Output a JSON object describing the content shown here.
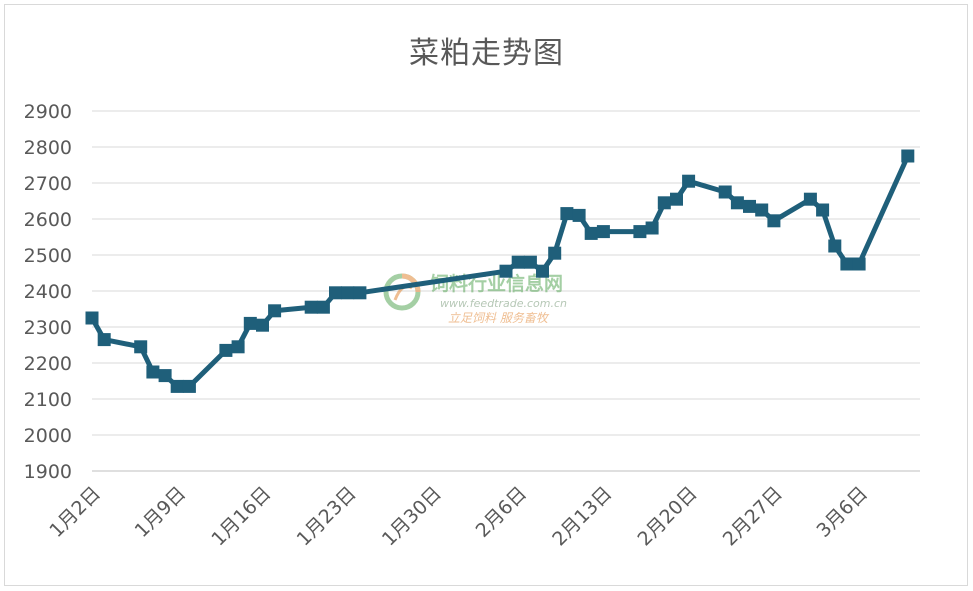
{
  "chart_data": {
    "type": "line",
    "title": "菜粕走势图",
    "xlabel": "",
    "ylabel": "",
    "ylim": [
      1900,
      2900
    ],
    "yticks": [
      1900,
      2000,
      2100,
      2200,
      2300,
      2400,
      2500,
      2600,
      2700,
      2800,
      2900
    ],
    "xticks": [
      {
        "label": "1月2日",
        "day": 2
      },
      {
        "label": "1月9日",
        "day": 9
      },
      {
        "label": "1月16日",
        "day": 16
      },
      {
        "label": "1月23日",
        "day": 23
      },
      {
        "label": "1月30日",
        "day": 30
      },
      {
        "label": "2月6日",
        "day": 37
      },
      {
        "label": "2月13日",
        "day": 44
      },
      {
        "label": "2月20日",
        "day": 51
      },
      {
        "label": "2月27日",
        "day": 58
      },
      {
        "label": "3月6日",
        "day": 65
      }
    ],
    "xlim": [
      2,
      70
    ],
    "grid": true,
    "line_color": "#1f5f7a",
    "series": [
      {
        "name": "",
        "points": [
          [
            2,
            2325
          ],
          [
            3,
            2265
          ],
          [
            6,
            2245
          ],
          [
            7,
            2175
          ],
          [
            8,
            2165
          ],
          [
            9,
            2135
          ],
          [
            10,
            2135
          ],
          [
            13,
            2235
          ],
          [
            14,
            2245
          ],
          [
            15,
            2310
          ],
          [
            16,
            2305
          ],
          [
            17,
            2345
          ],
          [
            20,
            2355
          ],
          [
            21,
            2355
          ],
          [
            22,
            2395
          ],
          [
            23,
            2395
          ],
          [
            24,
            2395
          ],
          [
            36,
            2455
          ],
          [
            37,
            2480
          ],
          [
            38,
            2480
          ],
          [
            39,
            2455
          ],
          [
            40,
            2505
          ],
          [
            41,
            2615
          ],
          [
            42,
            2610
          ],
          [
            43,
            2560
          ],
          [
            44,
            2565
          ],
          [
            47,
            2565
          ],
          [
            48,
            2575
          ],
          [
            49,
            2645
          ],
          [
            50,
            2655
          ],
          [
            51,
            2705
          ],
          [
            54,
            2675
          ],
          [
            55,
            2645
          ],
          [
            56,
            2635
          ],
          [
            57,
            2625
          ],
          [
            58,
            2595
          ],
          [
            61,
            2655
          ],
          [
            62,
            2625
          ],
          [
            63,
            2525
          ],
          [
            64,
            2475
          ],
          [
            65,
            2475
          ],
          [
            69,
            2775
          ]
        ]
      }
    ]
  },
  "watermark": {
    "title": "饲料行业信息网",
    "url": "www.feedtrade.com.cn",
    "slogan": "立足饲料  服务畜牧"
  }
}
